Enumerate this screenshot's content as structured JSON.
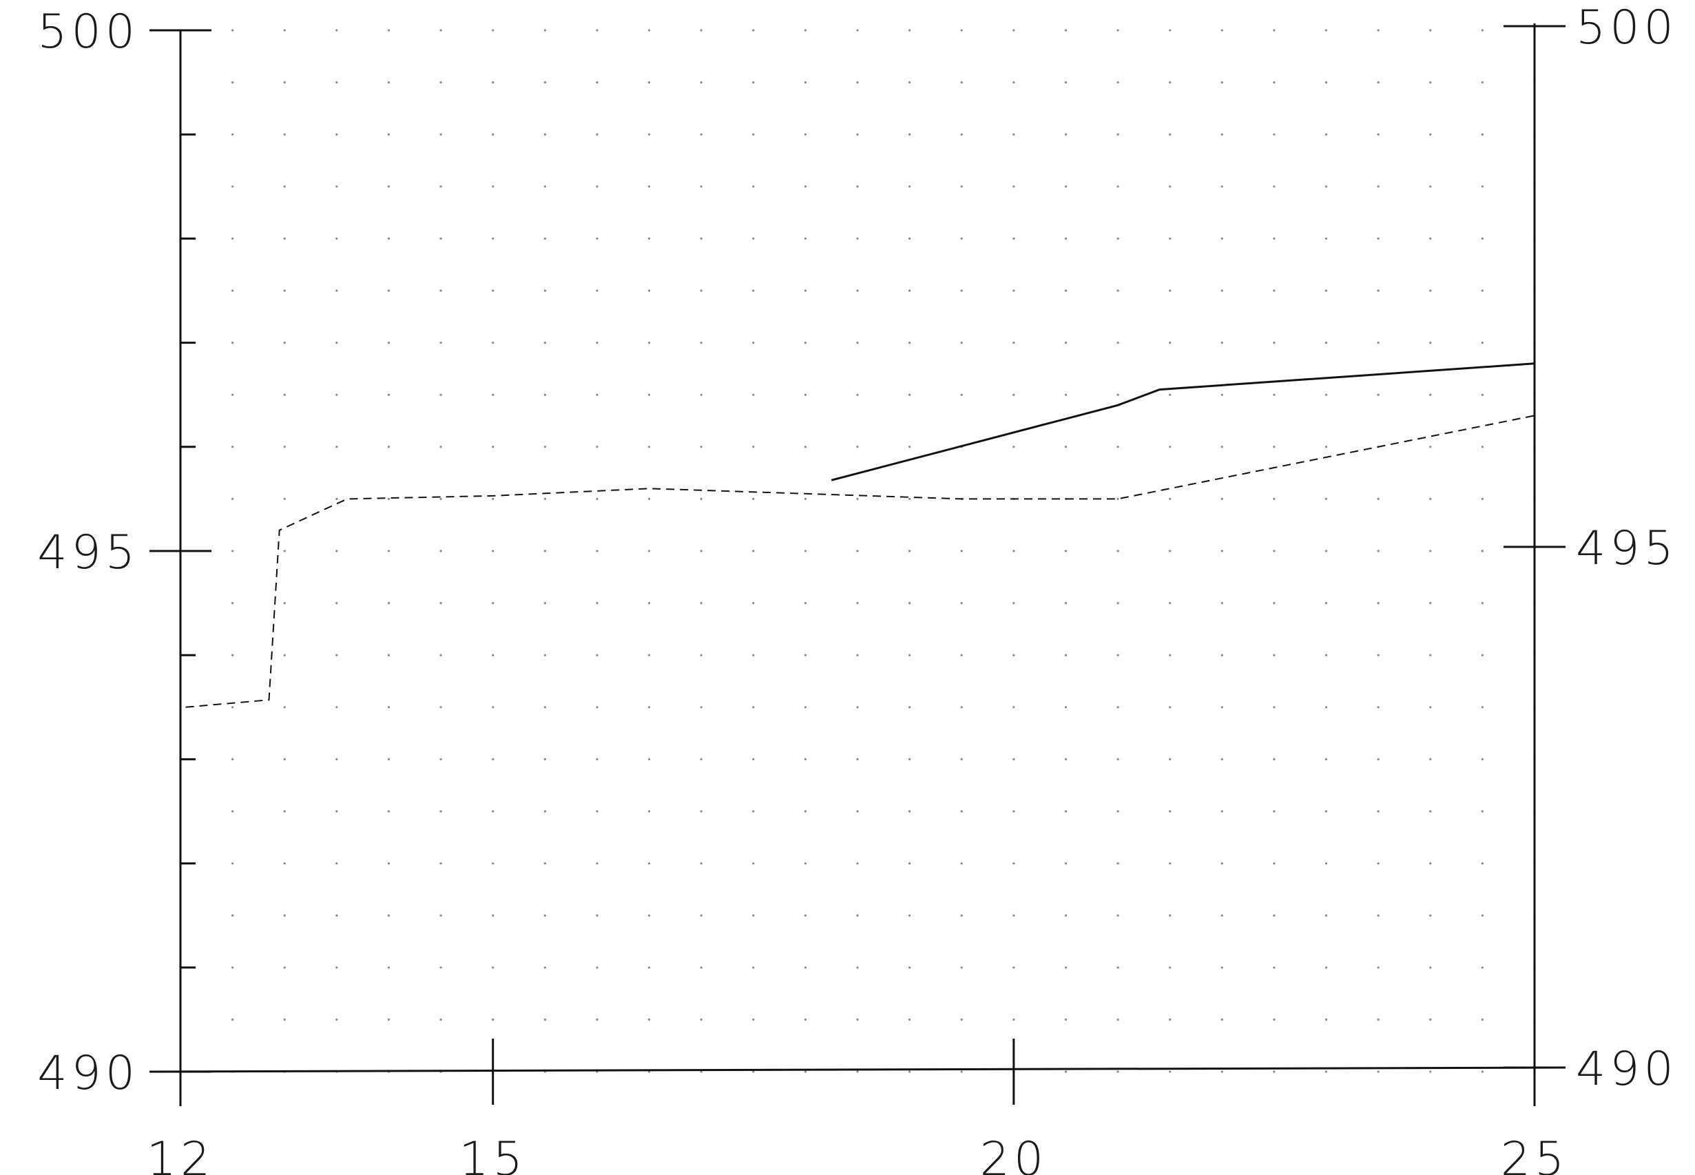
{
  "chart_data": {
    "type": "line",
    "title": "",
    "xlabel": "",
    "ylabel": "",
    "xlim": [
      12,
      25
    ],
    "ylim": [
      490,
      500
    ],
    "x_ticks": [
      12,
      15,
      20,
      25
    ],
    "x_tick_labels": [
      "12",
      "15",
      "20",
      "25"
    ],
    "y_ticks": [
      490,
      495,
      500
    ],
    "y_tick_labels": [
      "490",
      "495",
      "500"
    ],
    "y_minor_step": 1,
    "grid": "dotted",
    "right_axis": true,
    "colors": {
      "line": "#111111",
      "grid": "#888888",
      "axis": "#111111"
    },
    "series": [
      {
        "style": "solid",
        "points": [
          [
            18.25,
            495.68
          ],
          [
            21.0,
            496.4
          ],
          [
            21.4,
            496.55
          ],
          [
            25.0,
            496.8
          ]
        ]
      },
      {
        "style": "dashed",
        "points": [
          [
            12.05,
            493.5
          ],
          [
            12.85,
            493.57
          ],
          [
            12.95,
            495.2
          ],
          [
            13.6,
            495.5
          ],
          [
            15.0,
            495.53
          ],
          [
            16.5,
            495.6
          ],
          [
            18.0,
            495.55
          ],
          [
            19.5,
            495.5
          ],
          [
            21.0,
            495.5
          ],
          [
            23.0,
            495.9
          ],
          [
            25.0,
            496.3
          ]
        ]
      }
    ]
  }
}
